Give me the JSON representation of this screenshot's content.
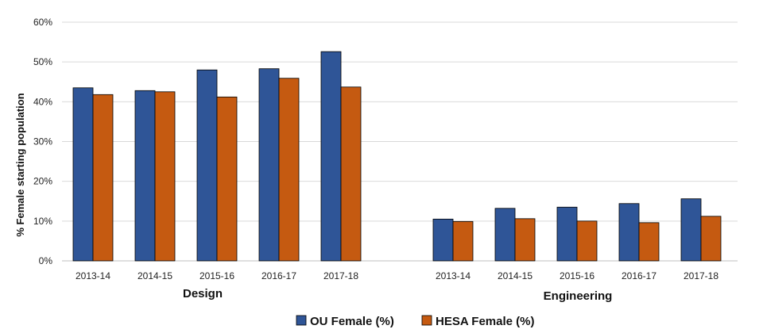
{
  "chart_data": {
    "type": "bar",
    "ylabel": "% Female starting population",
    "ylim": [
      0,
      60
    ],
    "yticks": [
      "0%",
      "10%",
      "20%",
      "30%",
      "40%",
      "50%",
      "60%"
    ],
    "ytick_values": [
      0,
      10,
      20,
      30,
      40,
      50,
      60
    ],
    "grid": true,
    "legend_position": "bottom",
    "groups": [
      {
        "label": "Design",
        "categories": [
          "2013-14",
          "2014-15",
          "2015-16",
          "2016-17",
          "2017-18"
        ],
        "series": [
          {
            "name": "OU Female (%)",
            "values": [
              43.5,
              42.8,
              48.0,
              48.3,
              52.6
            ]
          },
          {
            "name": "HESA Female (%)",
            "values": [
              41.8,
              42.5,
              41.2,
              45.9,
              43.7
            ]
          }
        ]
      },
      {
        "label": "Engineering",
        "categories": [
          "2013-14",
          "2014-15",
          "2015-16",
          "2016-17",
          "2017-18"
        ],
        "series": [
          {
            "name": "OU Female (%)",
            "values": [
              10.5,
              13.2,
              13.5,
              14.4,
              15.6
            ]
          },
          {
            "name": "HESA Female (%)",
            "values": [
              9.9,
              10.6,
              10.0,
              9.6,
              11.2
            ]
          }
        ]
      }
    ],
    "legend": [
      {
        "name": "OU Female (%)",
        "color": "#2f5597"
      },
      {
        "name": "HESA Female (%)",
        "color": "#c55a11"
      }
    ],
    "colors": {
      "series": [
        "#2f5597",
        "#c55a11"
      ],
      "grid": "#d9d9d9",
      "axis": "#bfbfbf"
    }
  }
}
